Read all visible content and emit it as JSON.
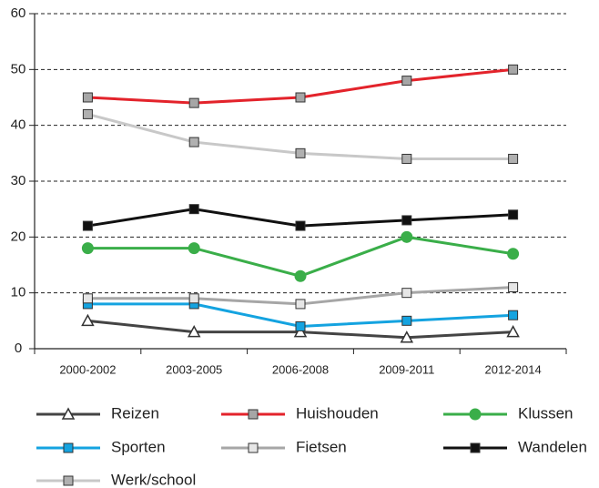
{
  "chart_data": {
    "type": "line",
    "categories": [
      "2000-2002",
      "2003-2005",
      "2006-2008",
      "2009-2011",
      "2012-2014"
    ],
    "series": [
      {
        "name": "Reizen",
        "color": "#444444",
        "marker": "triangle",
        "marker_fill": "#ffffff",
        "values": [
          5,
          3,
          3,
          2,
          3
        ]
      },
      {
        "name": "Huishouden",
        "color": "#e3232b",
        "marker": "square",
        "marker_fill": "#a6a6a6",
        "values": [
          45,
          44,
          45,
          48,
          50
        ]
      },
      {
        "name": "Klussen",
        "color": "#3aae49",
        "marker": "circle",
        "marker_fill": "#3aae49",
        "values": [
          18,
          18,
          13,
          20,
          17
        ]
      },
      {
        "name": "Sporten",
        "color": "#14a3e0",
        "marker": "square",
        "marker_fill": "#14a3e0",
        "values": [
          8,
          8,
          4,
          5,
          6
        ]
      },
      {
        "name": "Fietsen",
        "color": "#a6a6a6",
        "marker": "square",
        "marker_fill": "#e6e6e6",
        "values": [
          9,
          9,
          8,
          10,
          11
        ]
      },
      {
        "name": "Wandelen",
        "color": "#111111",
        "marker": "square",
        "marker_fill": "#111111",
        "values": [
          22,
          25,
          22,
          23,
          24
        ]
      },
      {
        "name": "Werk/school",
        "color": "#c8c8c8",
        "marker": "square",
        "marker_fill": "#b0b0b0",
        "values": [
          42,
          37,
          35,
          34,
          34
        ]
      }
    ],
    "ylim": [
      0,
      60
    ],
    "yticks": [
      0,
      10,
      20,
      30,
      40,
      50,
      60
    ],
    "grid": true,
    "legend": "bottom"
  }
}
